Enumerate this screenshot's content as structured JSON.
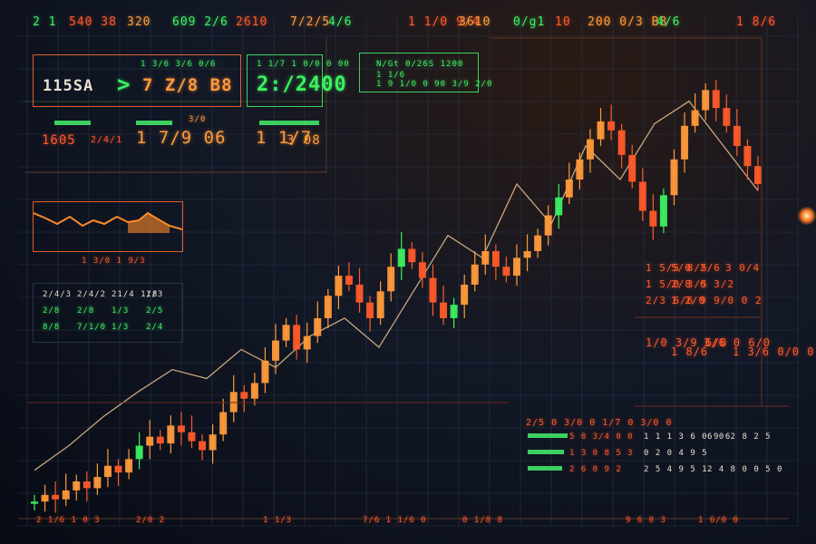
{
  "colors": {
    "up": "#3cf060",
    "down": "#ff5a2a",
    "mid": "#ff9a3a",
    "trend": "#e8c090",
    "grid": "#2a3448",
    "panel_green": "#3cd060",
    "panel_orange": "#e0602a"
  },
  "topbar": [
    "2 1",
    "540 38",
    "320",
    "609 2/6",
    "2610",
    "7/2/5",
    "4/6",
    "1 1/0 9/4",
    "3610",
    "0/g1",
    "10",
    "200 0/3 B8",
    "4/6",
    "1 8/6"
  ],
  "top_left_panel": {
    "label": "1 3/6 3/6 0/6",
    "value_a": "115SA",
    "arrow": ">",
    "value_b": "7 Z/8 B8"
  },
  "top_center_panel": {
    "label": "1 1/7 1 0/0 0 00",
    "value": "2:/2400"
  },
  "row_orange_left": {
    "a": "1605",
    "b": "2/4/1",
    "c": "1 7/9 06",
    "small": "3/0"
  },
  "row_orange_right": {
    "a": "1 1/7",
    "b": "3 08"
  },
  "chart_overlay_panel": {
    "title": "N/Gt 0/26S 1200",
    "line1": "1 1/6",
    "line2": "1 9 1/0 0 90 3/9 2/0"
  },
  "mini_panel_label": "1 3/0 1 9/3",
  "left_table": {
    "rows": [
      [
        "2/4/3",
        "2/4/2",
        "21/4 1/8",
        "1/3"
      ],
      [
        "2/8",
        "2/8",
        "1/3",
        "2/5"
      ],
      [
        "8/8",
        "7/1/0",
        "1/3",
        "2/4"
      ]
    ]
  },
  "right_table": {
    "rows": [
      [
        "1 5/5 8/5",
        "5/0",
        "2/6",
        "3 0/4"
      ],
      [
        "1 5/0 3/5",
        "2/8",
        "0 3/2"
      ],
      [
        "2/3 6/6",
        "1 2/0",
        "9 9/0 0 2"
      ]
    ],
    "bottom": [
      "1/0 3/9 6/0",
      "1 8/6",
      "3/6 0 6/0",
      "1 3/6 0/0 0 3/0"
    ]
  },
  "bottom_right_panel": {
    "header": "2/5 0 3/0 0 1/7 0 3/0 0",
    "rows": [
      [
        "5 0 3/4 0 0",
        "1 1 1 3 6 0 9 6",
        "6 0 2 8 2 5"
      ],
      [
        "1 3 0 8 5 3",
        "0 2 0 4 9 5"
      ],
      [
        "2 6 0 9 2",
        "2 5 4 9 5 1",
        "2 4 8 0 0 5 0"
      ]
    ]
  },
  "bottom_axis": [
    "2 1/6 1 0 3",
    "2/0 2",
    "1 1/3",
    "7/6 1 1/6 0",
    "0 1/8 8",
    "9 6 0 3",
    "1 6/0 0"
  ],
  "chart_data": {
    "type": "candlestick",
    "x": [
      "1",
      "2",
      "3",
      "4",
      "5",
      "6",
      "7",
      "8",
      "9",
      "10",
      "11",
      "12",
      "13",
      "14",
      "15",
      "16",
      "17",
      "18",
      "19",
      "20",
      "21",
      "22",
      "23",
      "24",
      "25",
      "26",
      "27",
      "28",
      "29",
      "30",
      "31",
      "32",
      "33",
      "34",
      "35",
      "36",
      "37",
      "38",
      "39",
      "40",
      "41",
      "42",
      "43",
      "44",
      "45",
      "46",
      "47",
      "48",
      "49",
      "50",
      "51",
      "52",
      "53",
      "54",
      "55",
      "56",
      "57",
      "58",
      "59",
      "60",
      "61",
      "62",
      "63",
      "64",
      "65",
      "66",
      "67",
      "68",
      "69",
      "70"
    ],
    "series": [
      {
        "close": [
          12,
          18,
          14,
          22,
          30,
          24,
          34,
          44,
          38,
          50,
          62,
          70,
          64,
          80,
          74,
          66,
          58,
          72,
          92,
          110,
          104,
          118,
          138,
          156,
          170,
          148,
          160,
          176,
          196,
          214,
          206,
          190,
          176,
          200,
          222,
          238,
          226,
          212,
          190,
          176,
          188,
          206,
          224,
          236,
          222,
          214,
          230,
          236,
          250,
          268,
          284,
          300,
          318,
          336,
          352,
          344,
          322,
          298,
          272,
          258,
          286,
          318,
          348,
          362,
          380,
          364,
          348,
          330,
          312,
          296
        ],
        "open": [
          10,
          12,
          18,
          14,
          22,
          30,
          24,
          34,
          44,
          38,
          50,
          62,
          70,
          64,
          80,
          74,
          66,
          58,
          72,
          92,
          110,
          104,
          118,
          138,
          156,
          170,
          148,
          160,
          176,
          196,
          214,
          206,
          190,
          176,
          200,
          222,
          238,
          226,
          212,
          190,
          176,
          188,
          206,
          224,
          236,
          222,
          214,
          230,
          236,
          250,
          268,
          284,
          300,
          318,
          336,
          352,
          344,
          322,
          298,
          272,
          258,
          286,
          318,
          348,
          362,
          380,
          364,
          348,
          330,
          312
        ]
      }
    ],
    "trend_line": [
      40,
      62,
      88,
      110,
      130,
      122,
      148,
      132,
      160,
      176,
      150,
      200,
      250,
      230,
      296,
      260,
      330,
      300,
      350,
      370,
      330,
      290
    ],
    "ylim": [
      0,
      420
    ],
    "grid": true
  }
}
